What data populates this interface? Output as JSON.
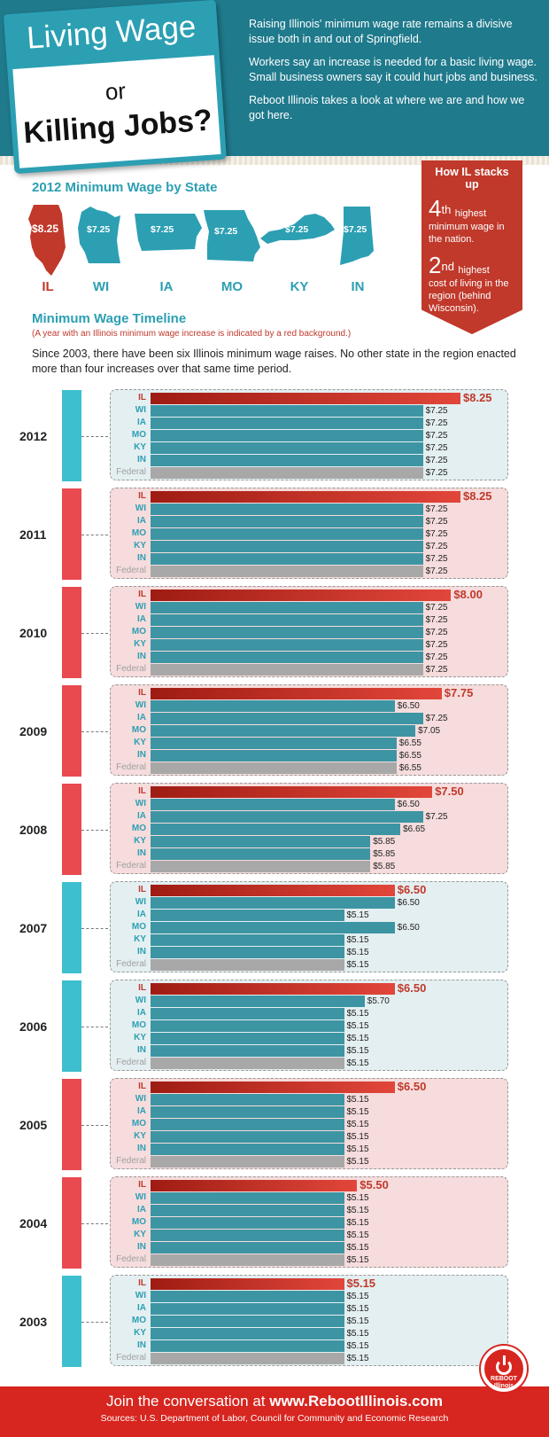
{
  "header": {
    "title_top": "Living Wage",
    "title_or": "or",
    "title_main": "Killing Jobs?",
    "paragraphs": [
      "Raising Illinois' minimum wage rate remains a divisive issue both in and out of Springfield.",
      "Workers say an increase is needed for a basic living wage. Small business owners say it could hurt jobs and business.",
      "Reboot Illinois takes a look at where we are and how we got here."
    ]
  },
  "stacks_up": {
    "title": "How IL stacks up",
    "items": [
      {
        "rank": "4",
        "suffix": "th",
        "text_a": "highest",
        "text_b": "minimum wage in the nation."
      },
      {
        "rank": "2",
        "suffix": "nd",
        "text_a": "highest",
        "text_b": "cost of living in the region (behind Wisconsin)."
      }
    ]
  },
  "state_section": {
    "title": "2012 Minimum Wage by State",
    "states": [
      {
        "abbr": "IL",
        "value": "$8.25",
        "color": "#c0392b"
      },
      {
        "abbr": "WI",
        "value": "$7.25",
        "color": "#2c9fb3"
      },
      {
        "abbr": "IA",
        "value": "$7.25",
        "color": "#2c9fb3"
      },
      {
        "abbr": "MO",
        "value": "$7.25",
        "color": "#2c9fb3"
      },
      {
        "abbr": "KY",
        "value": "$7.25",
        "color": "#2c9fb3"
      },
      {
        "abbr": "IN",
        "value": "$7.25",
        "color": "#2c9fb3"
      }
    ]
  },
  "timeline": {
    "title": "Minimum Wage Timeline",
    "note": "(A year with an Illinois minimum wage increase is indicated by a red background.)",
    "description": "Since 2003, there have been six Illinois minimum wage raises. No other state in the region enacted more than four increases over that same time period."
  },
  "chart_data": {
    "type": "bar",
    "categories": [
      "IL",
      "WI",
      "IA",
      "MO",
      "KY",
      "IN",
      "Federal"
    ],
    "years": [
      {
        "year": "2012",
        "il_increase": false,
        "values": [
          8.25,
          7.25,
          7.25,
          7.25,
          7.25,
          7.25,
          7.25
        ],
        "labels": [
          "$8.25",
          "$7.25",
          "$7.25",
          "$7.25",
          "$7.25",
          "$7.25",
          "$7.25"
        ]
      },
      {
        "year": "2011",
        "il_increase": true,
        "values": [
          8.25,
          7.25,
          7.25,
          7.25,
          7.25,
          7.25,
          7.25
        ],
        "labels": [
          "$8.25",
          "$7.25",
          "$7.25",
          "$7.25",
          "$7.25",
          "$7.25",
          "$7.25"
        ]
      },
      {
        "year": "2010",
        "il_increase": true,
        "values": [
          8.0,
          7.25,
          7.25,
          7.25,
          7.25,
          7.25,
          7.25
        ],
        "labels": [
          "$8.00",
          "$7.25",
          "$7.25",
          "$7.25",
          "$7.25",
          "$7.25",
          "$7.25"
        ]
      },
      {
        "year": "2009",
        "il_increase": true,
        "values": [
          7.75,
          6.5,
          7.25,
          7.05,
          6.55,
          6.55,
          6.55
        ],
        "labels": [
          "$7.75",
          "$6.50",
          "$7.25",
          "$7.05",
          "$6.55",
          "$6.55",
          "$6.55"
        ]
      },
      {
        "year": "2008",
        "il_increase": true,
        "values": [
          7.5,
          6.5,
          7.25,
          6.65,
          5.85,
          5.85,
          5.85
        ],
        "labels": [
          "$7.50",
          "$6.50",
          "$7.25",
          "$6.65",
          "$5.85",
          "$5.85",
          "$5.85"
        ]
      },
      {
        "year": "2007",
        "il_increase": false,
        "values": [
          6.5,
          6.5,
          5.15,
          6.5,
          5.15,
          5.15,
          5.15
        ],
        "labels": [
          "$6.50",
          "$6.50",
          "$5.15",
          "$6.50",
          "$5.15",
          "$5.15",
          "$5.15"
        ]
      },
      {
        "year": "2006",
        "il_increase": false,
        "values": [
          6.5,
          5.7,
          5.15,
          5.15,
          5.15,
          5.15,
          5.15
        ],
        "labels": [
          "$6.50",
          "$5.70",
          "$5.15",
          "$5.15",
          "$5.15",
          "$5.15",
          "$5.15"
        ]
      },
      {
        "year": "2005",
        "il_increase": true,
        "values": [
          6.5,
          5.15,
          5.15,
          5.15,
          5.15,
          5.15,
          5.15
        ],
        "labels": [
          "$6.50",
          "$5.15",
          "$5.15",
          "$5.15",
          "$5.15",
          "$5.15",
          "$5.15"
        ]
      },
      {
        "year": "2004",
        "il_increase": true,
        "values": [
          5.5,
          5.15,
          5.15,
          5.15,
          5.15,
          5.15,
          5.15
        ],
        "labels": [
          "$5.50",
          "$5.15",
          "$5.15",
          "$5.15",
          "$5.15",
          "$5.15",
          "$5.15"
        ]
      },
      {
        "year": "2003",
        "il_increase": false,
        "values": [
          5.15,
          5.15,
          5.15,
          5.15,
          5.15,
          5.15,
          5.15
        ],
        "labels": [
          "$5.15",
          "$5.15",
          "$5.15",
          "$5.15",
          "$5.15",
          "$5.15",
          "$5.15"
        ]
      }
    ],
    "colors": {
      "il": "#c0392b",
      "state": "#3d95a3",
      "federal": "#a8a8a8",
      "increase_bg": "#f6dcdc",
      "no_increase_bg": "#e4eff1",
      "increase_bar": "#e84a50",
      "no_increase_bar": "#3dbfcf"
    }
  },
  "footer": {
    "join_prefix": "Join the conversation at ",
    "join_site": "www.RebootIllinois.com",
    "sources": "Sources: U.S. Department of Labor, Council for Community and Economic Research",
    "logo_text_a": "REBOOT",
    "logo_text_b": "Illinois"
  }
}
